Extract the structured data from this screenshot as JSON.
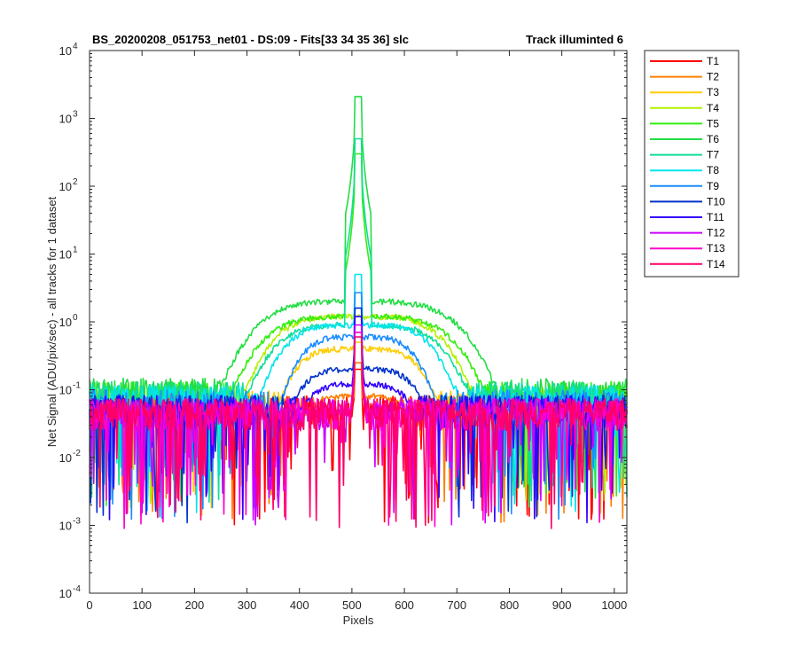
{
  "chart_data": {
    "type": "line",
    "title": "BS_20200208_051753_net01 - DS:09 - Fits[33   34   35   36]    slc",
    "title_right": "Track illuminted 6",
    "xlabel": "Pixels",
    "ylabel": "Net Signal (ADU/pix/sec) - all tracks for 1 dataset",
    "xlim": [
      0,
      1024
    ],
    "ylim": [
      0.0001,
      10000
    ],
    "yscale": "log",
    "grid": false,
    "legend_position": "outside-top-right",
    "x_ticks": [
      "0",
      "100",
      "200",
      "300",
      "400",
      "500",
      "600",
      "700",
      "800",
      "900",
      "1000"
    ],
    "y_ticks": [
      {
        "base": "10",
        "exp": "-4"
      },
      {
        "base": "10",
        "exp": "-3"
      },
      {
        "base": "10",
        "exp": "-2"
      },
      {
        "base": "10",
        "exp": "-1"
      },
      {
        "base": "10",
        "exp": "0"
      },
      {
        "base": "10",
        "exp": "1"
      },
      {
        "base": "10",
        "exp": "2"
      },
      {
        "base": "10",
        "exp": "3"
      },
      {
        "base": "10",
        "exp": "4"
      }
    ],
    "series": [
      {
        "name": "T1",
        "color": "#ff0000",
        "baseline": 0.05,
        "peak": 0.2,
        "hump": 0.0,
        "humpWidth": 130
      },
      {
        "name": "T2",
        "color": "#ff7f00",
        "baseline": 0.05,
        "peak": 0.25,
        "hump": 0.08,
        "humpWidth": 110
      },
      {
        "name": "T3",
        "color": "#ffcc00",
        "baseline": 0.06,
        "peak": 0.5,
        "hump": 0.4,
        "humpWidth": 130
      },
      {
        "name": "T4",
        "color": "#b3f000",
        "baseline": 0.07,
        "peak": 1.2,
        "hump": 1.2,
        "humpWidth": 170
      },
      {
        "name": "T5",
        "color": "#33ee11",
        "baseline": 0.08,
        "peak": 300,
        "hump": 1.2,
        "humpWidth": 190
      },
      {
        "name": "T6",
        "color": "#22dd44",
        "baseline": 0.09,
        "peak": 2100,
        "hump": 2.0,
        "humpWidth": 200
      },
      {
        "name": "T7",
        "color": "#11dd99",
        "baseline": 0.08,
        "peak": 500,
        "hump": 0.9,
        "humpWidth": 170
      },
      {
        "name": "T8",
        "color": "#00e5ee",
        "baseline": 0.07,
        "peak": 5,
        "hump": 0.9,
        "humpWidth": 150
      },
      {
        "name": "T9",
        "color": "#1a8cff",
        "baseline": 0.06,
        "peak": 2.7,
        "hump": 0.6,
        "humpWidth": 120
      },
      {
        "name": "T10",
        "color": "#0033cc",
        "baseline": 0.05,
        "peak": 1.6,
        "hump": 0.2,
        "humpWidth": 120
      },
      {
        "name": "T11",
        "color": "#3300ff",
        "baseline": 0.05,
        "peak": 1.2,
        "hump": 0.12,
        "humpWidth": 110
      },
      {
        "name": "T12",
        "color": "#cc00ff",
        "baseline": 0.045,
        "peak": 0.9,
        "hump": 0.0,
        "humpWidth": 100
      },
      {
        "name": "T13",
        "color": "#ff00cc",
        "baseline": 0.045,
        "peak": 0.7,
        "hump": 0.0,
        "humpWidth": 100
      },
      {
        "name": "T14",
        "color": "#ff0066",
        "baseline": 0.045,
        "peak": 0.6,
        "hump": 0.0,
        "humpWidth": 100
      }
    ]
  }
}
